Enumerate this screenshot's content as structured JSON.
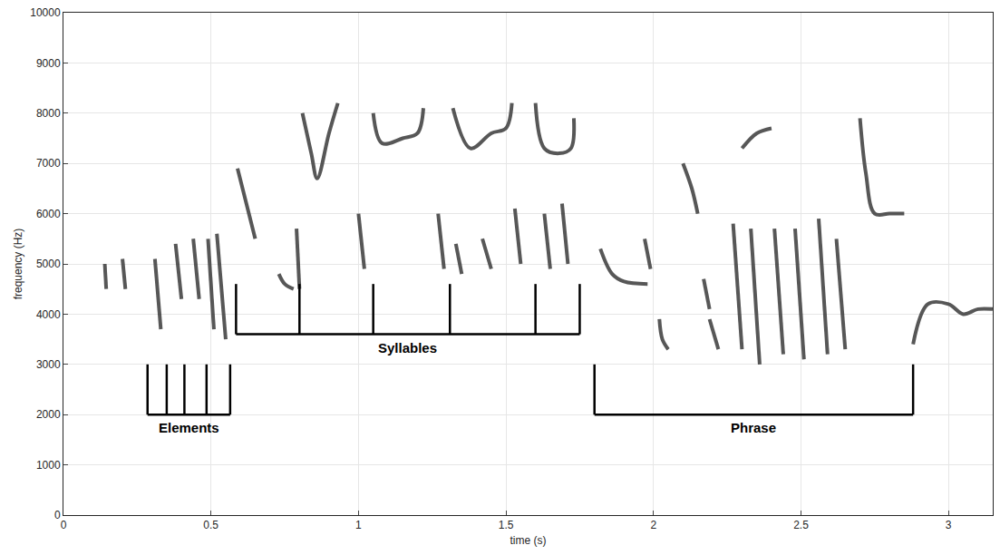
{
  "chart_data": {
    "type": "spectrogram",
    "x_label": "time (s)",
    "y_label": "frequency (Hz)",
    "xlim": [
      0,
      3.15
    ],
    "xticks": [
      0,
      0.5,
      1,
      1.5,
      2,
      2.5,
      3
    ],
    "ylim": [
      0,
      10000
    ],
    "yticks": [
      0,
      1000,
      2000,
      3000,
      4000,
      5000,
      6000,
      7000,
      8000,
      9000,
      10000
    ],
    "grid": true,
    "color": "#3a3a3a",
    "strokes": [
      {
        "x": [
          0.14,
          0.145
        ],
        "y": [
          5000,
          4500
        ]
      },
      {
        "x": [
          0.2,
          0.21
        ],
        "y": [
          5100,
          4500
        ]
      },
      {
        "x": [
          0.31,
          0.33
        ],
        "y": [
          5100,
          3700
        ]
      },
      {
        "x": [
          0.38,
          0.4
        ],
        "y": [
          5400,
          4300
        ]
      },
      {
        "x": [
          0.44,
          0.46
        ],
        "y": [
          5500,
          4300
        ]
      },
      {
        "x": [
          0.49,
          0.51
        ],
        "y": [
          5500,
          3700
        ]
      },
      {
        "x": [
          0.52,
          0.55
        ],
        "y": [
          5600,
          3500
        ]
      },
      {
        "x": [
          0.59,
          0.62,
          0.65
        ],
        "y": [
          6900,
          6200,
          5500
        ]
      },
      {
        "x": [
          0.73,
          0.75,
          0.78
        ],
        "y": [
          4800,
          4600,
          4500
        ]
      },
      {
        "x": [
          0.79,
          0.8
        ],
        "y": [
          5700,
          4500
        ]
      },
      {
        "x": [
          0.81,
          0.84,
          0.86,
          0.9,
          0.93
        ],
        "y": [
          8000,
          7200,
          6700,
          7600,
          8200
        ]
      },
      {
        "x": [
          1.0,
          1.02
        ],
        "y": [
          6000,
          4900
        ]
      },
      {
        "x": [
          1.05,
          1.08,
          1.15,
          1.2,
          1.22
        ],
        "y": [
          8000,
          7400,
          7500,
          7600,
          8100
        ]
      },
      {
        "x": [
          1.27,
          1.29
        ],
        "y": [
          6000,
          4900
        ]
      },
      {
        "x": [
          1.33,
          1.35
        ],
        "y": [
          5400,
          4800
        ]
      },
      {
        "x": [
          1.32,
          1.38,
          1.45,
          1.5,
          1.52
        ],
        "y": [
          8100,
          7300,
          7600,
          7700,
          8200
        ]
      },
      {
        "x": [
          1.53,
          1.55
        ],
        "y": [
          6100,
          5000
        ]
      },
      {
        "x": [
          1.42,
          1.45
        ],
        "y": [
          5500,
          4900
        ]
      },
      {
        "x": [
          1.6,
          1.63,
          1.68,
          1.72,
          1.73
        ],
        "y": [
          8200,
          7300,
          7200,
          7300,
          7900
        ]
      },
      {
        "x": [
          1.63,
          1.65
        ],
        "y": [
          6000,
          4900
        ]
      },
      {
        "x": [
          1.69,
          1.71
        ],
        "y": [
          6200,
          5000
        ]
      },
      {
        "x": [
          1.82,
          1.86,
          1.9,
          1.98
        ],
        "y": [
          5300,
          4800,
          4650,
          4600
        ]
      },
      {
        "x": [
          1.97,
          1.99
        ],
        "y": [
          5500,
          4900
        ]
      },
      {
        "x": [
          2.02,
          2.03,
          2.05
        ],
        "y": [
          3900,
          3500,
          3300
        ]
      },
      {
        "x": [
          2.1,
          2.13,
          2.15
        ],
        "y": [
          7000,
          6500,
          6000
        ]
      },
      {
        "x": [
          2.17,
          2.19
        ],
        "y": [
          4700,
          4100
        ]
      },
      {
        "x": [
          2.19,
          2.22
        ],
        "y": [
          3900,
          3300
        ]
      },
      {
        "x": [
          2.27,
          2.3
        ],
        "y": [
          5800,
          3300
        ]
      },
      {
        "x": [
          2.33,
          2.36
        ],
        "y": [
          5700,
          3000
        ]
      },
      {
        "x": [
          2.41,
          2.44
        ],
        "y": [
          5700,
          3200
        ]
      },
      {
        "x": [
          2.48,
          2.51
        ],
        "y": [
          5700,
          3100
        ]
      },
      {
        "x": [
          2.56,
          2.59
        ],
        "y": [
          5900,
          3200
        ]
      },
      {
        "x": [
          2.62,
          2.65
        ],
        "y": [
          5500,
          3300
        ]
      },
      {
        "x": [
          2.3,
          2.35,
          2.4
        ],
        "y": [
          7300,
          7600,
          7700
        ]
      },
      {
        "x": [
          2.7,
          2.72,
          2.75,
          2.8,
          2.85
        ],
        "y": [
          7900,
          6800,
          6000,
          6000,
          6000
        ]
      },
      {
        "x": [
          2.88,
          2.93,
          3.0,
          3.05,
          3.1,
          3.15
        ],
        "y": [
          3400,
          4200,
          4200,
          4000,
          4100,
          4100
        ]
      }
    ],
    "brackets": [
      {
        "label": "Elements",
        "x": [
          0.285,
          0.35,
          0.41,
          0.485,
          0.565
        ],
        "y": [
          2000,
          3000
        ]
      },
      {
        "label": "Syllables",
        "x": [
          0.585,
          0.8,
          1.05,
          1.31,
          1.6,
          1.75
        ],
        "y": [
          3600,
          4600
        ]
      },
      {
        "label": "Phrase",
        "x": [
          1.8,
          2.88
        ],
        "y": [
          2000,
          3000
        ]
      }
    ]
  }
}
